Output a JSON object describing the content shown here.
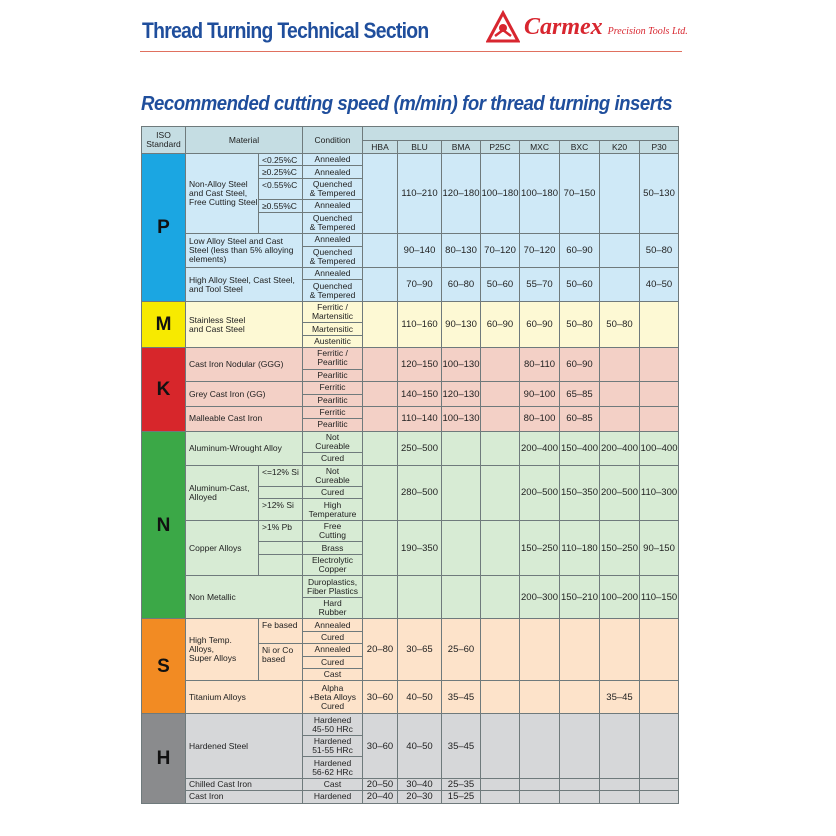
{
  "header": {
    "section_title": "Thread Turning Technical Section",
    "brand": "Carmex",
    "brand_sub": "Precision Tools Ltd."
  },
  "heading": "Recommended cutting speed (m/min) for thread turning inserts",
  "table": {
    "col_iso": "ISO\nStandard",
    "col_material": "Material",
    "col_condition": "Condition",
    "grades": [
      "HBA",
      "BLU",
      "BMA",
      "P25C",
      "MXC",
      "BXC",
      "K20",
      "P30"
    ]
  },
  "groups": [
    {
      "iso": "P",
      "color": "#1ba6e2",
      "bg": "#cfe9f7",
      "materials": [
        {
          "name": "Non-Alloy Steel\nand Cast Steel,\nFree Cutting Steel",
          "subs": [
            {
              "label": "<0.25%C",
              "span": 1
            },
            {
              "label": "≥0.25%C",
              "span": 1
            },
            {
              "label": "<0.55%C",
              "span": 1
            },
            {
              "label": "≥0.55%C",
              "span": 1
            },
            {
              "label": "",
              "span": 1
            }
          ],
          "conditions": [
            "Annealed",
            "Annealed",
            "Quenched\n& Tempered",
            "Annealed",
            "Quenched\n& Tempered"
          ],
          "values": [
            "",
            "110–210",
            "120–180",
            "100–180",
            "100–180",
            "70–150",
            "",
            "50–130"
          ]
        },
        {
          "name": "Low Alloy Steel and Cast\nSteel (less than 5% alloying\nelements)",
          "conditions": [
            "Annealed",
            "Quenched\n& Tempered"
          ],
          "values": [
            "",
            "90–140",
            "80–130",
            "70–120",
            "70–120",
            "60–90",
            "",
            "50–80"
          ]
        },
        {
          "name": "High Alloy Steel, Cast Steel,\nand Tool Steel",
          "conditions": [
            "Annealed",
            "Quenched\n& Tempered"
          ],
          "values": [
            "",
            "70–90",
            "60–80",
            "50–60",
            "55–70",
            "50–60",
            "",
            "40–50"
          ]
        }
      ]
    },
    {
      "iso": "M",
      "color": "#f7ea00",
      "bg": "#fdf9d4",
      "materials": [
        {
          "name": "Stainless Steel\nand Cast Steel",
          "conditions": [
            "Ferritic /\nMartensitic",
            "Martensitic",
            "Austenitic"
          ],
          "values": [
            "",
            "110–160",
            "90–130",
            "60–90",
            "60–90",
            "50–80",
            "50–80",
            ""
          ]
        }
      ]
    },
    {
      "iso": "K",
      "color": "#d7262b",
      "bg": "#f3d0c6",
      "materials": [
        {
          "name": "Cast Iron Nodular (GGG)",
          "conditions": [
            "Ferritic /\nPearlitic",
            "Pearlitic"
          ],
          "values": [
            "",
            "120–150",
            "100–130",
            "",
            "80–110",
            "60–90",
            "",
            ""
          ]
        },
        {
          "name": "Grey Cast Iron (GG)",
          "conditions": [
            "Ferritic",
            "Pearlitic"
          ],
          "values": [
            "",
            "140–150",
            "120–130",
            "",
            "90–100",
            "65–85",
            "",
            ""
          ]
        },
        {
          "name": "Malleable Cast Iron",
          "conditions": [
            "Ferritic",
            "Pearlitic"
          ],
          "values": [
            "",
            "110–140",
            "100–130",
            "",
            "80–100",
            "60–85",
            "",
            ""
          ]
        }
      ]
    },
    {
      "iso": "N",
      "color": "#3ba847",
      "bg": "#d7ebd4",
      "materials": [
        {
          "name": "Aluminum-Wrought Alloy",
          "conditions": [
            "Not\nCureable",
            "Cured"
          ],
          "values": [
            "",
            "250–500",
            "",
            "",
            "200–400",
            "150–400",
            "200–400",
            "100–400"
          ]
        },
        {
          "name": "Aluminum-Cast,\nAlloyed",
          "subs": [
            {
              "label": "<=12% Si",
              "span": 1
            },
            {
              "label": "",
              "span": 1
            },
            {
              "label": ">12% Si",
              "span": 1
            }
          ],
          "conditions": [
            "Not\nCureable",
            "Cured",
            "High\nTemperature"
          ],
          "values": [
            "",
            "280–500",
            "",
            "",
            "200–500",
            "150–350",
            "200–500",
            "110–300"
          ]
        },
        {
          "name": "Copper Alloys",
          "subs": [
            {
              "label": ">1% Pb",
              "span": 1
            },
            {
              "label": "",
              "span": 1
            },
            {
              "label": "",
              "span": 1
            }
          ],
          "conditions": [
            "Free\nCutting",
            "Brass",
            "Electrolytic\nCopper"
          ],
          "values": [
            "",
            "190–350",
            "",
            "",
            "150–250",
            "110–180",
            "150–250",
            "90–150"
          ]
        },
        {
          "name": "Non Metallic",
          "conditions": [
            "Duroplastics,\nFiber Plastics",
            "Hard\nRubber"
          ],
          "values": [
            "",
            "",
            "",
            "",
            "200–300",
            "150–210",
            "100–200",
            "110–150"
          ]
        }
      ]
    },
    {
      "iso": "S",
      "color": "#f28b23",
      "bg": "#fde3ca",
      "materials": [
        {
          "name": "High Temp. Alloys,\nSuper Alloys",
          "subs": [
            {
              "label": "Fe based",
              "span": 2
            },
            {
              "label": "Ni or Co\nbased",
              "span": 3
            }
          ],
          "conditions": [
            "Annealed",
            "Cured",
            "Annealed",
            "Cured",
            "Cast"
          ],
          "values": [
            "20–80",
            "30–65",
            "25–60",
            "",
            "",
            "",
            "",
            ""
          ]
        },
        {
          "name": "Titanium Alloys",
          "conditions": [
            "Alpha\n+Beta Alloys\nCured"
          ],
          "values": [
            "30–60",
            "40–50",
            "35–45",
            "",
            "",
            "",
            "35–45",
            ""
          ]
        }
      ]
    },
    {
      "iso": "H",
      "color": "#8a8b8d",
      "bg": "#d6d7d9",
      "materials": [
        {
          "name": "Hardened Steel",
          "conditions": [
            "Hardened\n45-50 HRc",
            "Hardened\n51-55 HRc",
            "Hardened\n56-62 HRc"
          ],
          "values": [
            "30–60",
            "40–50",
            "35–45",
            "",
            "",
            "",
            "",
            ""
          ]
        },
        {
          "name": "Chilled Cast Iron",
          "conditions": [
            "Cast"
          ],
          "values": [
            "20–50",
            "30–40",
            "25–35",
            "",
            "",
            "",
            "",
            ""
          ]
        },
        {
          "name": "Cast Iron",
          "conditions": [
            "Hardened"
          ],
          "values": [
            "20–40",
            "20–30",
            "15–25",
            "",
            "",
            "",
            "",
            ""
          ]
        }
      ]
    }
  ]
}
